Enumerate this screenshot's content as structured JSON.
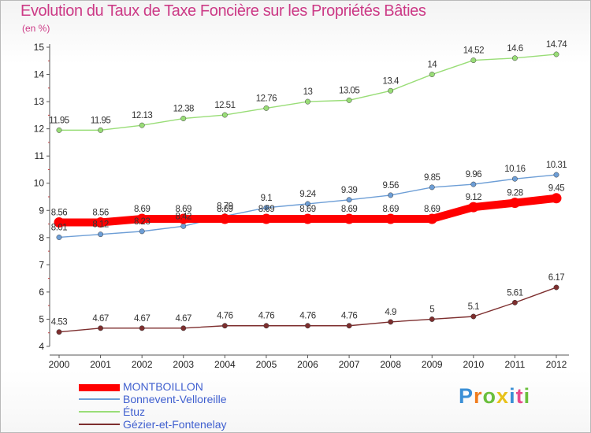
{
  "header": {
    "title": "Evolution du Taux de Taxe Foncière sur les Propriétés Bâties",
    "unit": "(en %)"
  },
  "chart_data": {
    "type": "line",
    "title": "Evolution du Taux de Taxe Foncière sur les Propriétés Bâties",
    "ylabel": "(en %)",
    "xlabel": "",
    "ylim": [
      4,
      15
    ],
    "yticks": [
      "4",
      "5",
      "6",
      "7",
      "8",
      "9",
      "10",
      "11",
      "12",
      "13",
      "14",
      "15"
    ],
    "categories": [
      "2000",
      "2001",
      "2002",
      "2003",
      "2004",
      "2005",
      "2006",
      "2007",
      "2008",
      "2009",
      "2010",
      "2011",
      "2012"
    ],
    "grid": false,
    "series": [
      {
        "name": "MONTBOILLON",
        "color": "#ff0000",
        "values": [
          8.56,
          8.56,
          8.69,
          8.69,
          8.69,
          8.69,
          8.69,
          8.69,
          8.69,
          8.69,
          9.12,
          9.28,
          9.45
        ],
        "labels": [
          "8.56",
          "8.56",
          "8.69",
          "8.69",
          "8.69",
          "8.69",
          "8.69",
          "8.69",
          "8.69",
          "8.69",
          "9.12",
          "9.28",
          "9.45"
        ]
      },
      {
        "name": "Bonnevent-Velloreille",
        "color": "#6d9ed6",
        "values": [
          8.01,
          8.12,
          8.23,
          8.42,
          8.79,
          9.1,
          9.24,
          9.39,
          9.56,
          9.85,
          9.96,
          10.16,
          10.31
        ],
        "labels": [
          "8.01",
          "8.12",
          "8.23",
          "8.42",
          "8.79",
          "9.1",
          "9.24",
          "9.39",
          "9.56",
          "9.85",
          "9.96",
          "10.16",
          "10.31"
        ]
      },
      {
        "name": "Étuz",
        "color": "#99dd77",
        "values": [
          11.95,
          11.95,
          12.13,
          12.38,
          12.51,
          12.76,
          13,
          13.05,
          13.4,
          14,
          14.52,
          14.6,
          14.74
        ],
        "labels": [
          "11.95",
          "11.95",
          "12.13",
          "12.38",
          "12.51",
          "12.76",
          "13",
          "13.05",
          "13.4",
          "14",
          "14.52",
          "14.6",
          "14.74"
        ]
      },
      {
        "name": "Gézier-et-Fontenelay",
        "color": "#7d2e2e",
        "values": [
          4.53,
          4.67,
          4.67,
          4.67,
          4.76,
          4.76,
          4.76,
          4.76,
          4.9,
          5,
          5.1,
          5.61,
          6.17
        ],
        "labels": [
          "4.53",
          "4.67",
          "4.67",
          "4.67",
          "4.76",
          "4.76",
          "4.76",
          "4.76",
          "4.9",
          "5",
          "5.1",
          "5.61",
          "6.17"
        ]
      }
    ],
    "legend": "bottom-left"
  },
  "legend": {
    "items": [
      {
        "label": "MONTBOILLON",
        "color": "#ff0000"
      },
      {
        "label": "Bonnevent-Velloreille",
        "color": "#6d9ed6"
      },
      {
        "label": "Étuz",
        "color": "#99dd77"
      },
      {
        "label": "Gézier-et-Fontenelay",
        "color": "#7d2e2e"
      }
    ]
  },
  "logo": {
    "text": "Proxiti",
    "colors": [
      "#3a8fd6",
      "#f07c1c",
      "#6abf3c",
      "#e8c21c",
      "#3a8fd6",
      "#e84a8c",
      "#6abf3c"
    ]
  }
}
